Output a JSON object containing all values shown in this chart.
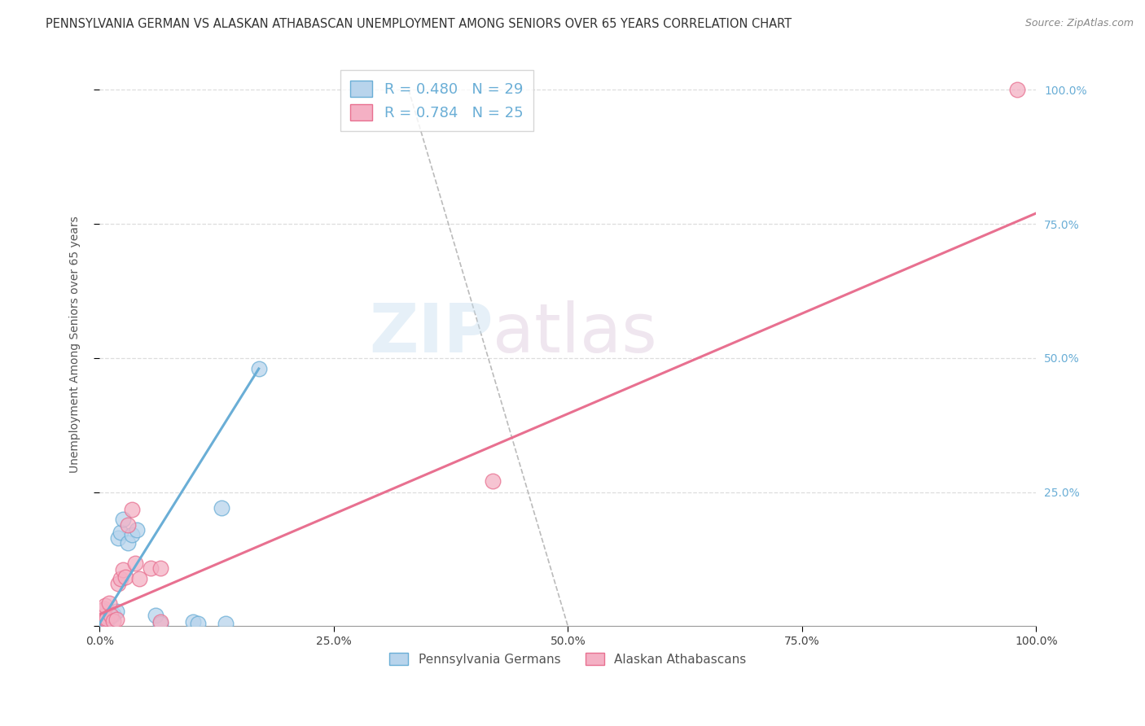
{
  "title": "PENNSYLVANIA GERMAN VS ALASKAN ATHABASCAN UNEMPLOYMENT AMONG SENIORS OVER 65 YEARS CORRELATION CHART",
  "source": "Source: ZipAtlas.com",
  "ylabel": "Unemployment Among Seniors over 65 years",
  "x_ticks": [
    0.0,
    0.25,
    0.5,
    0.75,
    1.0
  ],
  "x_tick_labels": [
    "0.0%",
    "25.0%",
    "50.0%",
    "75.0%",
    "100.0%"
  ],
  "y_ticks": [
    0.0,
    0.25,
    0.5,
    0.75,
    1.0
  ],
  "y_tick_labels_right": [
    "",
    "25.0%",
    "50.0%",
    "75.0%",
    "100.0%"
  ],
  "legend_entries": [
    {
      "label": "Pennsylvania Germans",
      "R": "0.480",
      "N": "29"
    },
    {
      "label": "Alaskan Athabascans",
      "R": "0.784",
      "N": "25"
    }
  ],
  "bg_color": "#ffffff",
  "grid_color": "#dddddd",
  "pa_color": "#6aaed6",
  "ak_color": "#e87090",
  "pa_scatter_fill": "#b8d4ec",
  "ak_scatter_fill": "#f4b0c4",
  "right_label_color": "#6aaed6",
  "pa_german_points": [
    [
      0.001,
      0.003
    ],
    [
      0.002,
      0.005
    ],
    [
      0.002,
      0.007
    ],
    [
      0.003,
      0.004
    ],
    [
      0.003,
      0.006
    ],
    [
      0.004,
      0.003
    ],
    [
      0.004,
      0.006
    ],
    [
      0.005,
      0.005
    ],
    [
      0.005,
      0.009
    ],
    [
      0.006,
      0.004
    ],
    [
      0.007,
      0.008
    ],
    [
      0.008,
      0.01
    ],
    [
      0.01,
      0.015
    ],
    [
      0.012,
      0.018
    ],
    [
      0.015,
      0.022
    ],
    [
      0.018,
      0.028
    ],
    [
      0.02,
      0.165
    ],
    [
      0.022,
      0.175
    ],
    [
      0.025,
      0.2
    ],
    [
      0.03,
      0.155
    ],
    [
      0.035,
      0.17
    ],
    [
      0.04,
      0.18
    ],
    [
      0.06,
      0.02
    ],
    [
      0.065,
      0.005
    ],
    [
      0.1,
      0.008
    ],
    [
      0.105,
      0.005
    ],
    [
      0.13,
      0.22
    ],
    [
      0.135,
      0.005
    ],
    [
      0.17,
      0.48
    ]
  ],
  "ak_athabascan_points": [
    [
      0.001,
      0.02
    ],
    [
      0.002,
      0.03
    ],
    [
      0.003,
      0.03
    ],
    [
      0.004,
      0.018
    ],
    [
      0.005,
      0.032
    ],
    [
      0.006,
      0.038
    ],
    [
      0.007,
      0.012
    ],
    [
      0.008,
      0.014
    ],
    [
      0.01,
      0.043
    ],
    [
      0.012,
      0.02
    ],
    [
      0.015,
      0.01
    ],
    [
      0.018,
      0.012
    ],
    [
      0.02,
      0.08
    ],
    [
      0.022,
      0.088
    ],
    [
      0.025,
      0.105
    ],
    [
      0.028,
      0.092
    ],
    [
      0.03,
      0.188
    ],
    [
      0.035,
      0.218
    ],
    [
      0.038,
      0.118
    ],
    [
      0.042,
      0.088
    ],
    [
      0.055,
      0.108
    ],
    [
      0.065,
      0.108
    ],
    [
      0.065,
      0.008
    ],
    [
      0.42,
      0.27
    ],
    [
      0.98,
      1.0
    ]
  ],
  "pa_german_line_x": [
    0.0,
    0.17
  ],
  "pa_german_line_y": [
    0.005,
    0.48
  ],
  "ak_athabascan_line_x": [
    0.0,
    1.0
  ],
  "ak_athabascan_line_y": [
    0.022,
    0.77
  ],
  "diag_line_x": [
    0.33,
    0.5
  ],
  "diag_line_y": [
    1.0,
    0.0
  ]
}
